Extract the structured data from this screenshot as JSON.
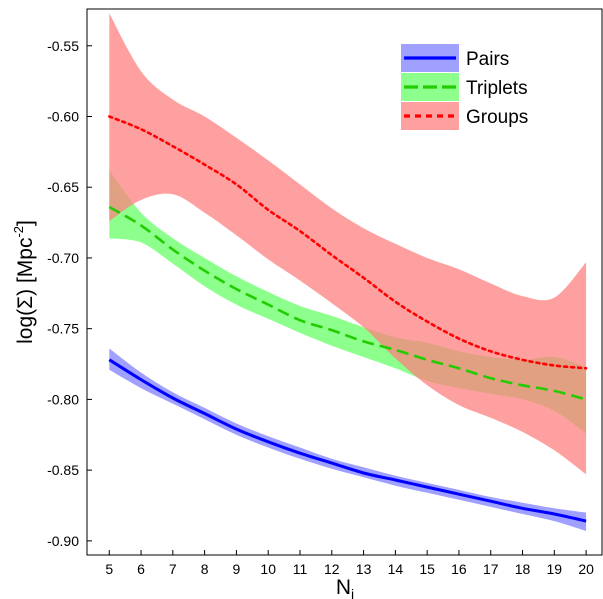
{
  "chart_data": {
    "type": "line",
    "xlabel": "N",
    "xlabel_sub": "i",
    "ylabel_prefix": "log(Σ) [Mpc",
    "ylabel_sup": "-2",
    "ylabel_suffix": "]",
    "xlim": [
      4.3,
      20.5
    ],
    "ylim": [
      -0.91,
      -0.524
    ],
    "xticks": [
      5,
      6,
      7,
      8,
      9,
      10,
      11,
      12,
      13,
      14,
      15,
      16,
      17,
      18,
      19,
      20
    ],
    "yticks": [
      -0.55,
      -0.6,
      -0.65,
      -0.7,
      -0.75,
      -0.8,
      -0.85,
      -0.9
    ],
    "ytick_labels": [
      "-0.55",
      "-0.60",
      "-0.65",
      "-0.70",
      "-0.75",
      "-0.80",
      "-0.85",
      "-0.90"
    ],
    "legend_position": "top-right",
    "x": [
      5,
      6,
      7,
      8,
      9,
      10,
      11,
      12,
      13,
      14,
      15,
      16,
      17,
      18,
      19,
      20
    ],
    "series": [
      {
        "name": "Pairs",
        "color": "#0000ff",
        "band_color": "#8080ff",
        "line_style": "solid",
        "values": [
          -0.772,
          -0.786,
          -0.799,
          -0.81,
          -0.821,
          -0.83,
          -0.838,
          -0.845,
          -0.852,
          -0.857,
          -0.862,
          -0.867,
          -0.872,
          -0.877,
          -0.881,
          -0.886
        ],
        "upper": [
          -0.764,
          -0.781,
          -0.795,
          -0.806,
          -0.817,
          -0.826,
          -0.834,
          -0.842,
          -0.848,
          -0.854,
          -0.859,
          -0.864,
          -0.869,
          -0.873,
          -0.877,
          -0.88
        ],
        "lower": [
          -0.779,
          -0.792,
          -0.803,
          -0.814,
          -0.825,
          -0.834,
          -0.842,
          -0.849,
          -0.855,
          -0.861,
          -0.866,
          -0.871,
          -0.876,
          -0.881,
          -0.886,
          -0.893
        ]
      },
      {
        "name": "Triplets",
        "color": "#22cc00",
        "band_color": "#66ff66",
        "line_style": "dashed",
        "values": [
          -0.664,
          -0.677,
          -0.694,
          -0.709,
          -0.722,
          -0.733,
          -0.744,
          -0.751,
          -0.759,
          -0.765,
          -0.772,
          -0.778,
          -0.785,
          -0.79,
          -0.794,
          -0.8
        ],
        "upper": [
          -0.638,
          -0.668,
          -0.686,
          -0.7,
          -0.713,
          -0.724,
          -0.734,
          -0.741,
          -0.749,
          -0.756,
          -0.76,
          -0.766,
          -0.77,
          -0.772,
          -0.77,
          -0.777
        ],
        "lower": [
          -0.686,
          -0.689,
          -0.704,
          -0.72,
          -0.733,
          -0.743,
          -0.753,
          -0.762,
          -0.77,
          -0.778,
          -0.787,
          -0.792,
          -0.796,
          -0.8,
          -0.808,
          -0.824
        ]
      },
      {
        "name": "Groups",
        "color": "#ff0000",
        "band_color": "#ff8080",
        "line_style": "dotted",
        "values": [
          -0.6,
          -0.609,
          -0.621,
          -0.634,
          -0.648,
          -0.666,
          -0.681,
          -0.698,
          -0.714,
          -0.731,
          -0.745,
          -0.757,
          -0.766,
          -0.772,
          -0.776,
          -0.778
        ],
        "upper": [
          -0.527,
          -0.568,
          -0.588,
          -0.6,
          -0.615,
          -0.631,
          -0.648,
          -0.665,
          -0.679,
          -0.69,
          -0.7,
          -0.708,
          -0.718,
          -0.727,
          -0.728,
          -0.703
        ],
        "lower": [
          -0.674,
          -0.659,
          -0.655,
          -0.668,
          -0.684,
          -0.701,
          -0.716,
          -0.732,
          -0.749,
          -0.771,
          -0.79,
          -0.804,
          -0.813,
          -0.823,
          -0.836,
          -0.853
        ]
      }
    ]
  }
}
